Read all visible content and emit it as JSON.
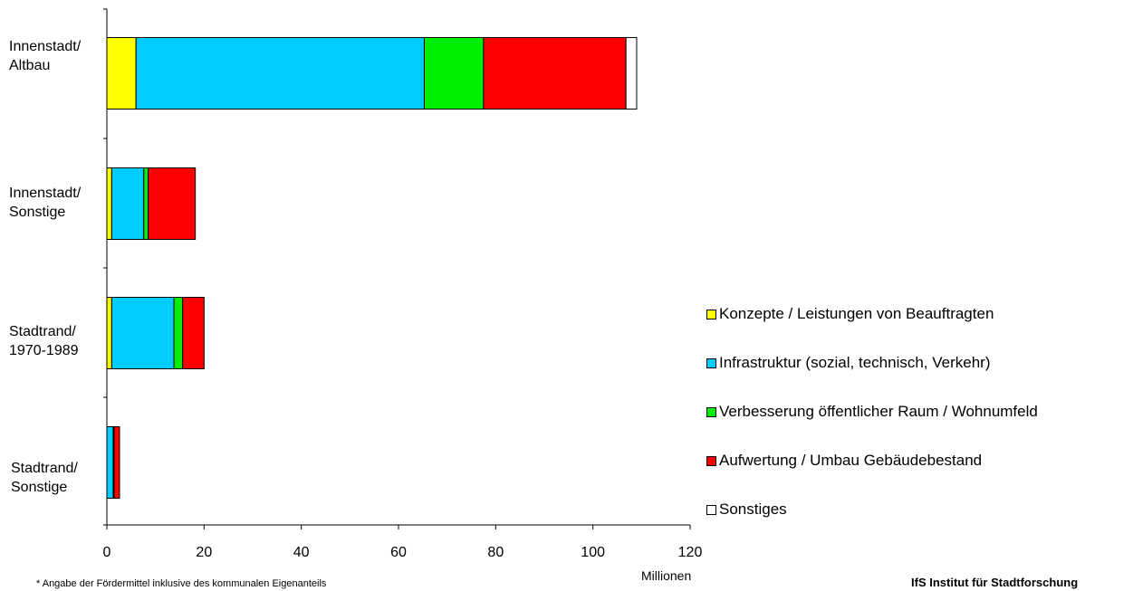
{
  "chart_data": {
    "type": "bar",
    "orientation": "horizontal",
    "stacked": true,
    "categories": [
      "Innenstadt/\nAltbau",
      "Innenstadt/\nSonstige",
      "Stadtrand/\n1970-1989",
      "Stadtrand/\nSonstige"
    ],
    "series": [
      {
        "name": "Konzepte / Leistungen von Beauftragten",
        "color": "#ffff00",
        "values": [
          6,
          1,
          1,
          0
        ]
      },
      {
        "name": "Infrastruktur (sozial, technisch, Verkehr)",
        "color": "#00ccff",
        "values": [
          59.3,
          6.6,
          12.8,
          1.3
        ]
      },
      {
        "name": "Verbesserung öffentlicher Raum / Wohnumfeld",
        "color": "#00ee00",
        "values": [
          12.2,
          0.9,
          1.8,
          0.2
        ]
      },
      {
        "name": "Aufwertung / Umbau Gebäudebestand",
        "color": "#ff0000",
        "values": [
          29.3,
          9.7,
          4.4,
          1.1
        ]
      },
      {
        "name": "Sonstiges",
        "color": "#ffffff",
        "values": [
          2.2,
          0,
          0,
          0
        ]
      }
    ],
    "xticks": [
      "0",
      "20",
      "40",
      "60",
      "80",
      "100",
      "120"
    ],
    "xlim": [
      0,
      120
    ],
    "xunit": "Millionen",
    "legend_position": "right"
  },
  "footnote": "* Angabe der Fördermittel inklusive des kommunalen Eigenanteils",
  "source": "IfS Institut für Stadtforschung"
}
